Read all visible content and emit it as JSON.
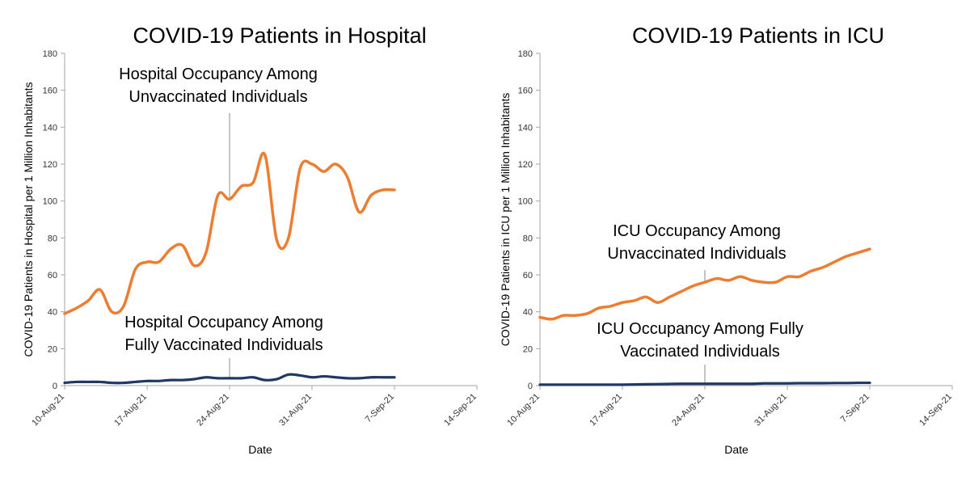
{
  "charts": [
    {
      "type": "line",
      "title": "COVID-19 Patients in Hospital",
      "xlabel": "Date",
      "ylabel": "COVID-19 Patients in Hospital per 1 Million Inhabitants",
      "ylim": [
        0,
        180
      ],
      "yticks": [
        "0",
        "20",
        "40",
        "60",
        "80",
        "100",
        "120",
        "140",
        "160",
        "180"
      ],
      "xticks": [
        "10-Aug-21",
        "17-Aug-21",
        "24-Aug-21",
        "31-Aug-21",
        "7-Sep-21",
        "14-Sep-21"
      ],
      "grid": false,
      "series": [
        {
          "name": "Unvaccinated",
          "color": "#ED7D31",
          "x": [
            0,
            1,
            2,
            3,
            4,
            5,
            6,
            7,
            8,
            9,
            10,
            11,
            12,
            13,
            14,
            15,
            16,
            17,
            18,
            19,
            20,
            21,
            22,
            23,
            24,
            25,
            26,
            27,
            28
          ],
          "values": [
            39,
            42,
            46,
            52,
            40,
            43,
            63,
            67,
            67,
            74,
            76,
            65,
            72,
            103,
            101,
            108,
            110,
            125,
            79,
            80,
            118,
            120,
            116,
            120,
            113,
            94,
            103,
            106,
            106
          ]
        },
        {
          "name": "Fully Vaccinated",
          "color": "#203864",
          "x": [
            0,
            1,
            2,
            3,
            4,
            5,
            6,
            7,
            8,
            9,
            10,
            11,
            12,
            13,
            14,
            15,
            16,
            17,
            18,
            19,
            20,
            21,
            22,
            23,
            24,
            25,
            26,
            27,
            28
          ],
          "values": [
            1.5,
            2,
            2,
            2,
            1.5,
            1.5,
            2,
            2.5,
            2.5,
            3,
            3,
            3.5,
            4.5,
            4,
            4,
            4,
            4.5,
            3,
            3.5,
            6,
            5.5,
            4.5,
            5,
            4.5,
            4,
            4,
            4.5,
            4.5,
            4.5
          ]
        }
      ],
      "annotations": [
        {
          "lines": [
            "Hospital Occupancy Among",
            "Unvaccinated Individuals"
          ],
          "target_x": 14,
          "series": 0
        },
        {
          "lines": [
            "Hospital Occupancy  Among",
            "Fully Vaccinated Individuals"
          ],
          "target_x": 14,
          "series": 1
        }
      ]
    },
    {
      "type": "line",
      "title": "COVID-19 Patients in ICU",
      "xlabel": "Date",
      "ylabel": "COVID-19 Patients in ICU  per 1 Million Inhabitants",
      "ylim": [
        0,
        180
      ],
      "yticks": [
        "0",
        "20",
        "40",
        "60",
        "80",
        "100",
        "120",
        "140",
        "160",
        "180"
      ],
      "xticks": [
        "10-Aug-21",
        "17-Aug-21",
        "24-Aug-21",
        "31-Aug-21",
        "7-Sep-21",
        "14-Sep-21"
      ],
      "grid": false,
      "series": [
        {
          "name": "Unvaccinated",
          "color": "#ED7D31",
          "x": [
            0,
            1,
            2,
            3,
            4,
            5,
            6,
            7,
            8,
            9,
            10,
            11,
            12,
            13,
            14,
            15,
            16,
            17,
            18,
            19,
            20,
            21,
            22,
            23,
            24,
            25,
            26,
            27,
            28
          ],
          "values": [
            37,
            36,
            38,
            38,
            39,
            42,
            43,
            45,
            46,
            48,
            45,
            48,
            51,
            54,
            56,
            58,
            57,
            59,
            57,
            56,
            56,
            59,
            59,
            62,
            64,
            67,
            70,
            72,
            74
          ]
        },
        {
          "name": "Fully Vaccinated",
          "color": "#203864",
          "x": [
            0,
            1,
            2,
            3,
            4,
            5,
            6,
            7,
            8,
            9,
            10,
            11,
            12,
            13,
            14,
            15,
            16,
            17,
            18,
            19,
            20,
            21,
            22,
            23,
            24,
            25,
            26,
            27,
            28
          ],
          "values": [
            0.5,
            0.5,
            0.5,
            0.5,
            0.5,
            0.5,
            0.5,
            0.5,
            0.6,
            0.7,
            0.8,
            0.9,
            1,
            1,
            1,
            1,
            1,
            1,
            1,
            1.2,
            1.2,
            1.2,
            1.3,
            1.3,
            1.3,
            1.4,
            1.4,
            1.5,
            1.5
          ]
        }
      ],
      "annotations": [
        {
          "lines": [
            "ICU Occupancy Among",
            "Unvaccinated Individuals"
          ],
          "target_x": 14,
          "series": 0
        },
        {
          "lines": [
            "ICU Occupancy Among Fully",
            "Vaccinated Individuals"
          ],
          "target_x": 14,
          "series": 1
        }
      ]
    }
  ]
}
